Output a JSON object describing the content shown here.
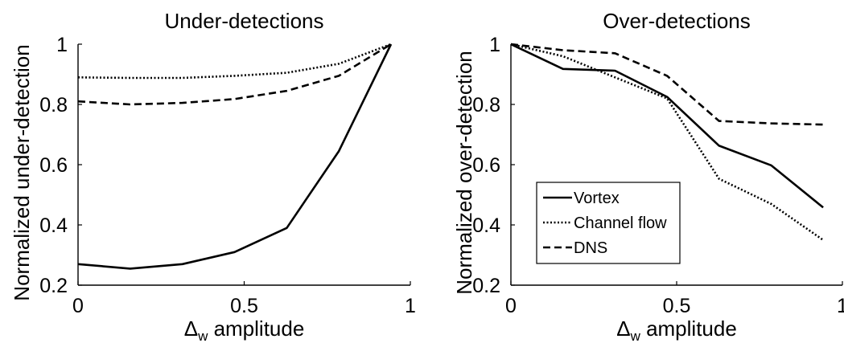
{
  "chart_data": [
    {
      "type": "line",
      "title": "Under-detections",
      "xlabel_main": "Δ",
      "xlabel_sub": "w",
      "xlabel_rest": " amplitude",
      "ylabel": "Normalized under-detection",
      "xlim": [
        0,
        1
      ],
      "ylim": [
        0.2,
        1
      ],
      "xticks": [
        0,
        0.5,
        1
      ],
      "xtick_labels": [
        "0",
        "0.5",
        "1"
      ],
      "yticks": [
        0.2,
        0.4,
        0.6,
        0.8,
        1
      ],
      "ytick_labels": [
        "0.2",
        "0.4",
        "0.6",
        "0.8",
        "1"
      ],
      "grid": false,
      "x": [
        0,
        0.157,
        0.314,
        0.471,
        0.628,
        0.785,
        0.942
      ],
      "series": [
        {
          "name": "Vortex",
          "style": "solid",
          "values": [
            0.27,
            0.255,
            0.27,
            0.31,
            0.39,
            0.645,
            1.0
          ]
        },
        {
          "name": "Channel flow",
          "style": "dotted",
          "values": [
            0.89,
            0.888,
            0.888,
            0.895,
            0.905,
            0.935,
            1.0
          ]
        },
        {
          "name": "DNS",
          "style": "dashed",
          "values": [
            0.81,
            0.8,
            0.805,
            0.818,
            0.845,
            0.895,
            1.0
          ]
        }
      ]
    },
    {
      "type": "line",
      "title": "Over-detections",
      "xlabel_main": "Δ",
      "xlabel_sub": "w",
      "xlabel_rest": " amplitude",
      "ylabel": "Normalized over-detection",
      "xlim": [
        0,
        1
      ],
      "ylim": [
        0.2,
        1
      ],
      "xticks": [
        0,
        0.5,
        1
      ],
      "xtick_labels": [
        "0",
        "0.5",
        "1"
      ],
      "yticks": [
        0.2,
        0.4,
        0.6,
        0.8,
        1
      ],
      "ytick_labels": [
        "0.2",
        "0.4",
        "0.6",
        "0.8",
        "1"
      ],
      "grid": false,
      "legend_position": "lower-left",
      "x": [
        0,
        0.157,
        0.314,
        0.471,
        0.628,
        0.785,
        0.942
      ],
      "series": [
        {
          "name": "Vortex",
          "style": "solid",
          "values": [
            1.0,
            0.918,
            0.912,
            0.825,
            0.663,
            0.598,
            0.458
          ]
        },
        {
          "name": "Channel flow",
          "style": "dotted",
          "values": [
            1.0,
            0.96,
            0.89,
            0.82,
            0.553,
            0.47,
            0.35
          ]
        },
        {
          "name": "DNS",
          "style": "dashed",
          "values": [
            1.0,
            0.98,
            0.97,
            0.895,
            0.745,
            0.737,
            0.733
          ]
        }
      ]
    }
  ]
}
